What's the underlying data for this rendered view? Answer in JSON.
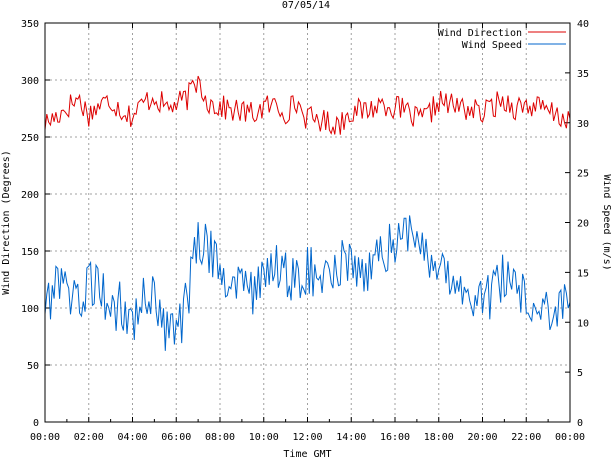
{
  "chart_data": {
    "type": "line",
    "title": "07/05/14",
    "xlabel": "Time GMT",
    "ylabel_left": "Wind Direction (Degrees)",
    "ylabel_right": "Wind Speed (m/s)",
    "x_ticks": [
      "00:00",
      "02:00",
      "04:00",
      "06:00",
      "08:00",
      "10:00",
      "12:00",
      "14:00",
      "16:00",
      "18:00",
      "20:00",
      "22:00",
      "00:00"
    ],
    "xlim_hours": [
      0,
      24
    ],
    "ylim_left": [
      0,
      350
    ],
    "yticks_left": [
      0,
      50,
      100,
      150,
      200,
      250,
      300,
      350
    ],
    "ylim_right": [
      0,
      40
    ],
    "yticks_right": [
      0,
      5,
      10,
      15,
      20,
      25,
      30,
      35,
      40
    ],
    "grid": true,
    "legend_position": "top-right",
    "series": [
      {
        "name": "Wind Direction",
        "axis": "left",
        "color": "#dd0000",
        "interval_hours": 0.5,
        "values": [
          262,
          268,
          276,
          284,
          270,
          278,
          282,
          274,
          268,
          280,
          286,
          276,
          278,
          284,
          300,
          280,
          276,
          274,
          272,
          270,
          276,
          278,
          272,
          280,
          266,
          266,
          262,
          262,
          274,
          272,
          276,
          280,
          276,
          272,
          265,
          268,
          282,
          278,
          276,
          274,
          270,
          278,
          282,
          276,
          278,
          276,
          272,
          268,
          266
        ]
      },
      {
        "name": "Wind Speed",
        "axis": "right",
        "color": "#0066cc",
        "interval_hours": 0.5,
        "values": [
          12,
          13,
          14,
          12,
          14,
          13,
          11,
          12,
          10,
          12,
          13,
          9,
          9,
          12,
          18,
          17,
          16,
          14,
          15,
          13,
          14,
          16,
          15,
          14,
          15,
          15,
          14,
          16,
          16,
          15,
          16,
          17,
          18,
          19,
          17,
          16,
          15,
          15,
          14,
          13,
          12,
          13,
          15,
          14,
          12,
          11,
          11,
          11,
          12
        ]
      }
    ]
  }
}
